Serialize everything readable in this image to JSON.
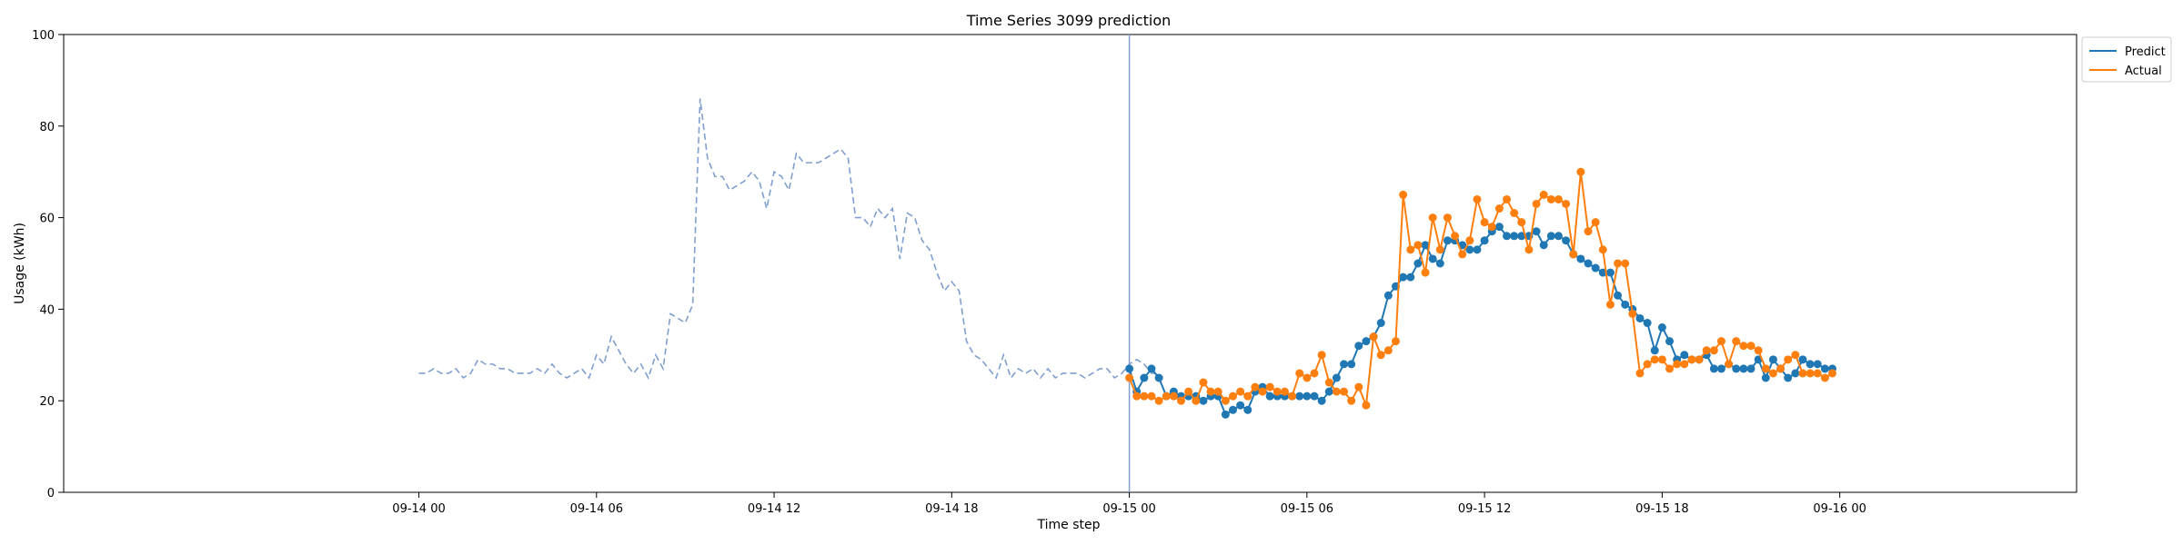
{
  "chart_data": {
    "type": "line",
    "title": "Time Series 3099 prediction",
    "xlabel": "Time step",
    "ylabel": "Usage (kWh)",
    "ylim": [
      0,
      100
    ],
    "yticks": [
      0,
      20,
      40,
      60,
      80,
      100
    ],
    "xticks": [
      "09-14 00",
      "09-14 06",
      "09-14 12",
      "09-14 18",
      "09-15 00",
      "09-15 06",
      "09-15 12",
      "09-15 18",
      "09-16 00"
    ],
    "forecast_start": "09-15 00",
    "legend": {
      "position": "top-right",
      "entries": [
        "Predict",
        "Actual"
      ]
    },
    "colors": {
      "history": "#7f9fcf",
      "predict": "#1f77b4",
      "actual": "#ff7f0e",
      "divider": "#7f9fcf"
    },
    "history": {
      "x_start": "09-14 00:00",
      "step_minutes": 15,
      "values": [
        26,
        26,
        27,
        26,
        26,
        27,
        25,
        26,
        29,
        28,
        28,
        27,
        27,
        26,
        26,
        26,
        27,
        26,
        28,
        26,
        25,
        26,
        27,
        25,
        30,
        28,
        34,
        31,
        28,
        26,
        28,
        25,
        30,
        27,
        39,
        38,
        37,
        41,
        86,
        73,
        69,
        69,
        66,
        67,
        68,
        70,
        68,
        62,
        70,
        69,
        66,
        74,
        72,
        72,
        72,
        73,
        74,
        75,
        73,
        60,
        60,
        58,
        62,
        60,
        62,
        51,
        61,
        60,
        55,
        53,
        48,
        44,
        46,
        44,
        33,
        30,
        29,
        27,
        25,
        30,
        25,
        27,
        26,
        27,
        25,
        27,
        25,
        26,
        26,
        26,
        25,
        26,
        27,
        27,
        25,
        26,
        28,
        29,
        28,
        26,
        26
      ]
    },
    "series": [
      {
        "name": "Predict",
        "x_start": "09-15 00:00",
        "step_minutes": 15,
        "values": [
          27,
          22,
          25,
          27,
          25,
          21,
          22,
          21,
          21,
          21,
          20,
          21,
          21,
          17,
          18,
          19,
          18,
          22,
          23,
          21,
          21,
          21,
          21,
          21,
          21,
          21,
          20,
          22,
          25,
          28,
          28,
          32,
          33,
          34,
          37,
          43,
          45,
          47,
          47,
          50,
          54,
          51,
          50,
          55,
          55,
          54,
          53,
          53,
          55,
          57,
          58,
          56,
          56,
          56,
          56,
          57,
          54,
          56,
          56,
          55,
          52,
          51,
          50,
          49,
          48,
          48,
          43,
          41,
          40,
          38,
          37,
          31,
          36,
          33,
          29,
          30,
          29,
          29,
          30,
          27,
          27,
          28,
          27,
          27,
          27,
          29,
          25,
          29,
          27,
          25,
          26,
          29,
          28,
          28,
          27,
          27
        ]
      },
      {
        "name": "Actual",
        "x_start": "09-15 00:00",
        "step_minutes": 15,
        "values": [
          25,
          21,
          21,
          21,
          20,
          21,
          21,
          20,
          22,
          20,
          24,
          22,
          22,
          20,
          21,
          22,
          21,
          23,
          22,
          23,
          22,
          22,
          21,
          26,
          25,
          26,
          30,
          24,
          22,
          22,
          20,
          23,
          19,
          34,
          30,
          31,
          33,
          65,
          53,
          54,
          48,
          60,
          53,
          60,
          56,
          52,
          55,
          64,
          59,
          58,
          62,
          64,
          61,
          59,
          53,
          63,
          65,
          64,
          64,
          63,
          52,
          70,
          57,
          59,
          53,
          41,
          50,
          50,
          39,
          26,
          28,
          29,
          29,
          27,
          28,
          28,
          29,
          29,
          31,
          31,
          33,
          28,
          33,
          32,
          32,
          31,
          27,
          26,
          27,
          29,
          30,
          26,
          26,
          26,
          25,
          26
        ]
      }
    ]
  }
}
